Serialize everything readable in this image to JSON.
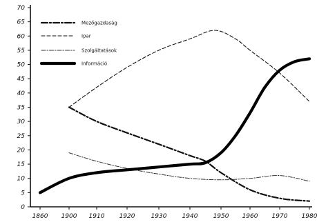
{
  "chart_data": {
    "type": "line",
    "title": "",
    "xlabel": "",
    "ylabel": "",
    "xlim": [
      1860,
      1980
    ],
    "ylim": [
      0,
      70
    ],
    "grid": false,
    "legend_placement": "top-left",
    "x_ticks": [
      1860,
      1900,
      1910,
      1920,
      1930,
      1940,
      1950,
      1960,
      1970,
      1980
    ],
    "x_tick_labels": [
      "1860",
      "1900",
      "1910",
      "1920",
      "1930",
      "1940",
      "1950",
      "1960",
      "1970",
      "1980"
    ],
    "y_ticks": [
      0,
      5,
      10,
      15,
      20,
      25,
      30,
      35,
      40,
      45,
      50,
      55,
      60,
      65,
      70
    ],
    "y_tick_labels": [
      "0",
      "5",
      "10",
      "15",
      "20",
      "25",
      "30",
      "35",
      "40",
      "45",
      "50",
      "55",
      "60",
      "65",
      "70"
    ],
    "series": [
      {
        "name": "Mezőgazdaság",
        "style": "dashdot-heavy",
        "x": [
          1900,
          1910,
          1920,
          1930,
          1940,
          1945,
          1950,
          1960,
          1970,
          1980
        ],
        "values": [
          35,
          30,
          26,
          22,
          18,
          16,
          12,
          6,
          3,
          2
        ]
      },
      {
        "name": "Ipar",
        "style": "dashed",
        "x": [
          1900,
          1910,
          1920,
          1930,
          1940,
          1948,
          1955,
          1960,
          1970,
          1980
        ],
        "values": [
          35,
          42,
          49,
          55,
          59,
          62,
          59,
          55,
          47,
          37
        ]
      },
      {
        "name": "Szolgáltatások",
        "style": "dashdot-thin",
        "x": [
          1900,
          1910,
          1920,
          1930,
          1940,
          1950,
          1960,
          1970,
          1980
        ],
        "values": [
          19,
          16,
          13.5,
          11.5,
          10,
          9.5,
          10,
          11,
          9
        ]
      },
      {
        "name": "Információ",
        "style": "thick-solid",
        "x": [
          1860,
          1900,
          1910,
          1920,
          1930,
          1940,
          1945,
          1950,
          1955,
          1960,
          1965,
          1970,
          1975,
          1980
        ],
        "values": [
          5,
          10,
          12,
          13,
          14,
          15,
          15.5,
          19,
          25,
          33,
          42,
          48,
          51,
          52
        ]
      }
    ]
  }
}
